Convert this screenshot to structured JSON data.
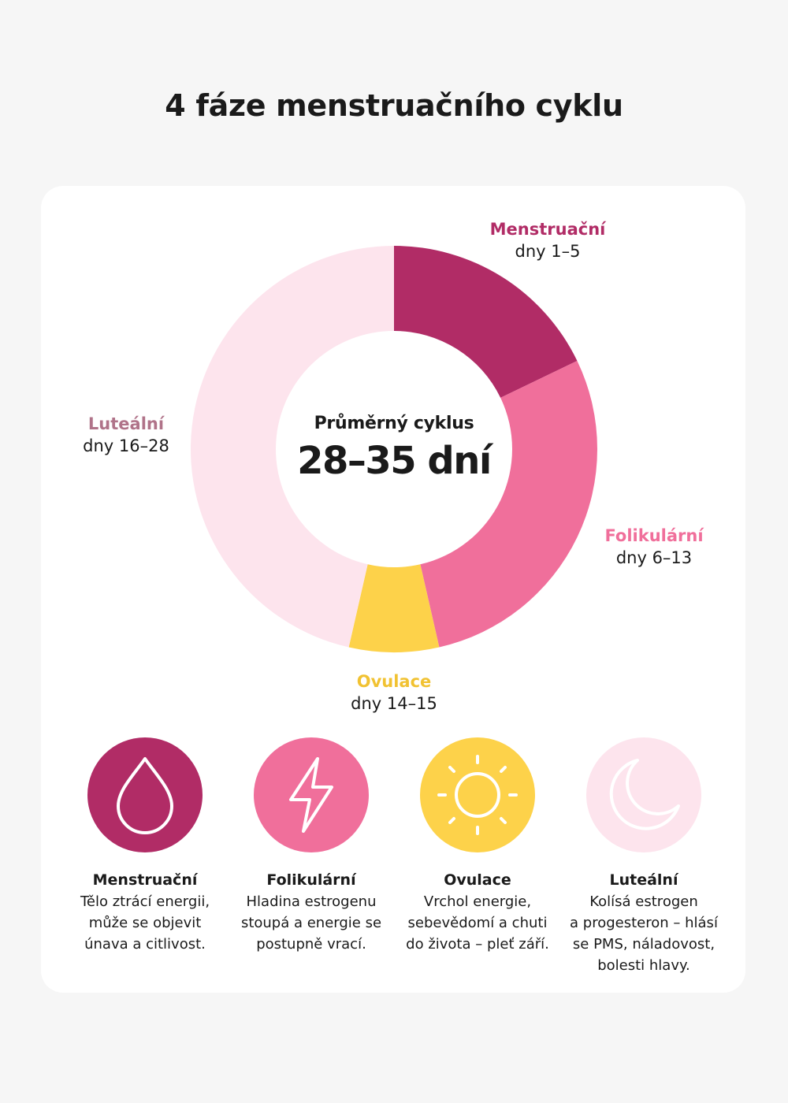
{
  "title": "4 fáze menstruačního cyklu",
  "center": {
    "caption": "Průměrný cyklus",
    "value": "28–35 dní"
  },
  "colors": {
    "menstrual": "#b12c66",
    "follicular": "#f06f9b",
    "ovulation": "#fdd24a",
    "luteal": "#fde4ed",
    "luteal_text": "#b07389"
  },
  "chart_data": {
    "type": "pie",
    "unit": "days",
    "series": [
      {
        "name": "Menstruační",
        "days": "dny 1–5",
        "range": [
          1,
          5
        ],
        "value": 5,
        "color": "#b12c66"
      },
      {
        "name": "Folikulární",
        "days": "dny 6–13",
        "range": [
          6,
          13
        ],
        "value": 8,
        "color": "#f06f9b"
      },
      {
        "name": "Ovulace",
        "days": "dny 14–15",
        "range": [
          14,
          15
        ],
        "value": 2,
        "color": "#fdd24a"
      },
      {
        "name": "Luteální",
        "days": "dny 16–28",
        "range": [
          16,
          28
        ],
        "value": 13,
        "color": "#fde4ed"
      }
    ]
  },
  "phases": [
    {
      "name": "Menstruační",
      "icon": "drop-icon",
      "color": "#b12c66",
      "lines": [
        "Tělo ztrácí energii,",
        "může se objevit",
        "únava a citlivost."
      ]
    },
    {
      "name": "Folikulární",
      "icon": "lightning-icon",
      "color": "#f06f9b",
      "lines": [
        "Hladina estrogenu",
        "stoupá a energie se",
        "postupně vrací."
      ]
    },
    {
      "name": "Ovulace",
      "icon": "sun-icon",
      "color": "#fdd24a",
      "lines": [
        "Vrchol energie,",
        "sebevědomí a chuti",
        "do života – pleť září."
      ]
    },
    {
      "name": "Luteální",
      "icon": "moon-icon",
      "color": "#fde4ed",
      "lines": [
        "Kolísá estrogen",
        "a progesteron – hlásí",
        "se PMS, náladovost,",
        "bolesti hlavy."
      ]
    }
  ]
}
